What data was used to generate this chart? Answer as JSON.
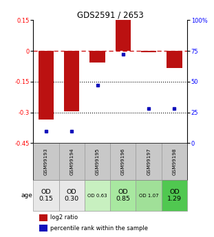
{
  "title": "GDS2591 / 2653",
  "samples": [
    "GSM99193",
    "GSM99194",
    "GSM99195",
    "GSM99196",
    "GSM99197",
    "GSM99198"
  ],
  "log2_ratios": [
    -0.335,
    -0.295,
    -0.055,
    0.155,
    -0.005,
    -0.085
  ],
  "percentile_ranks": [
    10,
    10,
    47,
    72,
    28,
    28
  ],
  "age_labels": [
    "OD\n0.15",
    "OD\n0.30",
    "OD 0.63",
    "OD\n0.85",
    "OD 1.07",
    "OD\n1.29"
  ],
  "age_small": [
    false,
    false,
    true,
    false,
    true,
    false
  ],
  "age_colors": [
    "#e8e8e8",
    "#e8e8e8",
    "#c8f0c0",
    "#a8e8a0",
    "#a0e098",
    "#50c850"
  ],
  "bar_color": "#bb1111",
  "point_color": "#1111bb",
  "ylim_left": [
    -0.45,
    0.15
  ],
  "ylim_right": [
    0,
    100
  ],
  "yticks_left": [
    0.15,
    0,
    -0.15,
    -0.3,
    -0.45
  ],
  "yticks_right": [
    100,
    75,
    50,
    25,
    0
  ],
  "hlines": [
    0,
    -0.15,
    -0.3
  ],
  "hline_styles": [
    "dashed",
    "dotted",
    "dotted"
  ],
  "background_color": "#ffffff",
  "sample_bg": "#c8c8c8"
}
